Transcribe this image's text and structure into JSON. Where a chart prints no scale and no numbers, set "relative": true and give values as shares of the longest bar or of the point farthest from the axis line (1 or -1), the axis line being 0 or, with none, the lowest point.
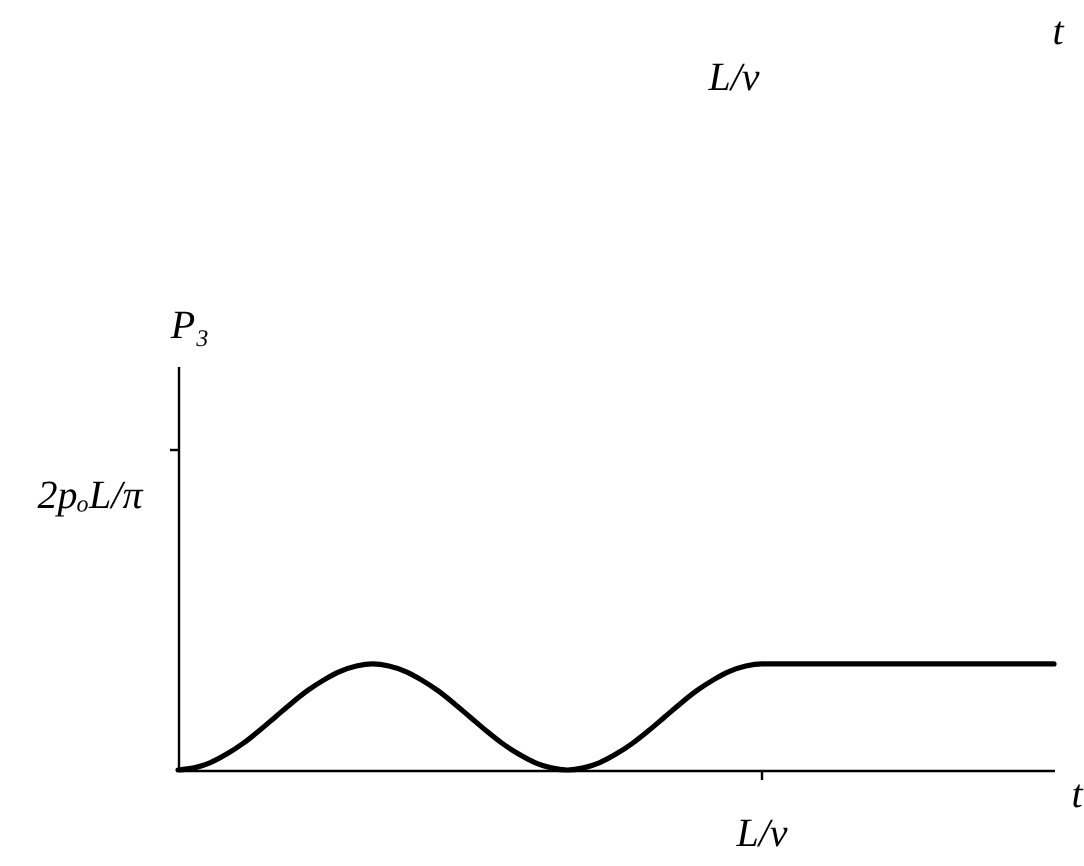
{
  "chart_data": {
    "type": "line",
    "relative": true,
    "xlabel": "t",
    "line_style": "solid",
    "annotations": [
      "L/ν",
      "t",
      "2pₒL/π",
      "L/ν",
      "P₃"
    ],
    "categories": [
      null,
      null,
      null,
      null,
      null,
      null,
      null,
      null,
      null,
      null,
      null,
      null,
      null,
      null,
      null,
      null,
      null,
      null,
      null,
      null,
      null,
      null,
      null,
      null,
      null,
      null,
      null,
      null,
      null,
      null,
      null,
      null,
      null,
      null,
      null,
      null,
      null,
      null,
      null,
      null,
      null,
      null,
      null,
      null,
      null,
      null,
      null,
      null,
      null,
      null,
      null,
      null,
      null,
      null,
      null
    ],
    "series": [
      {
        "color": "#000000",
        "values": [
          0,
          0.02,
          0.07,
          0.15,
          0.25,
          0.37,
          0.5,
          0.63,
          0.75,
          0.85,
          0.93,
          0.98,
          1,
          0.98,
          0.93,
          0.85,
          0.75,
          0.63,
          0.5,
          0.37,
          0.25,
          0.15,
          0.07,
          0.02,
          0,
          0.02,
          0.07,
          0.15,
          0.25,
          0.37,
          0.5,
          0.63,
          0.75,
          0.85,
          0.93,
          0.98,
          1,
          1,
          1,
          1,
          1,
          1,
          1,
          1,
          1,
          1,
          1,
          1,
          1,
          1,
          1,
          1,
          1,
          1,
          1
        ]
      }
    ]
  }
}
